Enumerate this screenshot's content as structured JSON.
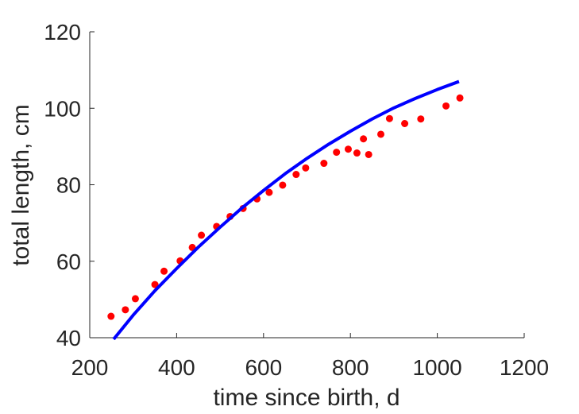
{
  "chart_data": {
    "type": "scatter",
    "xlabel": "time since birth, d",
    "ylabel": "total length, cm",
    "xlim": [
      200,
      1200
    ],
    "ylim": [
      40,
      120
    ],
    "xticks": [
      "200",
      "400",
      "600",
      "800",
      "1000",
      "1200"
    ],
    "yticks": [
      "40",
      "60",
      "80",
      "100",
      "120"
    ],
    "grid": false,
    "series": [
      {
        "kind": "points",
        "color": "#ff0000",
        "x": [
          249,
          282,
          305,
          350,
          371,
          408,
          436,
          457,
          492,
          523,
          553,
          585,
          613,
          644,
          675,
          697,
          739,
          768,
          795,
          815,
          830,
          842,
          870,
          890,
          925,
          962,
          1020,
          1052
        ],
        "y": [
          45.6,
          47.3,
          50.2,
          53.9,
          57.4,
          60.1,
          63.6,
          66.8,
          69.1,
          71.7,
          73.8,
          76.3,
          78.0,
          79.9,
          82.7,
          84.4,
          85.6,
          88.5,
          89.3,
          88.3,
          92.0,
          87.9,
          93.2,
          97.3,
          96.0,
          97.2,
          100.6,
          102.7
        ]
      },
      {
        "kind": "line",
        "color": "#0000ff",
        "x": [
          255,
          300,
          350,
          400,
          450,
          500,
          550,
          600,
          650,
          700,
          750,
          800,
          850,
          900,
          950,
          1000,
          1050
        ],
        "y": [
          39.6,
          45.9,
          52.3,
          58.1,
          63.7,
          68.9,
          73.9,
          78.5,
          82.9,
          86.9,
          90.6,
          94.0,
          97.2,
          100.1,
          102.6,
          104.9,
          107.0
        ]
      }
    ]
  }
}
